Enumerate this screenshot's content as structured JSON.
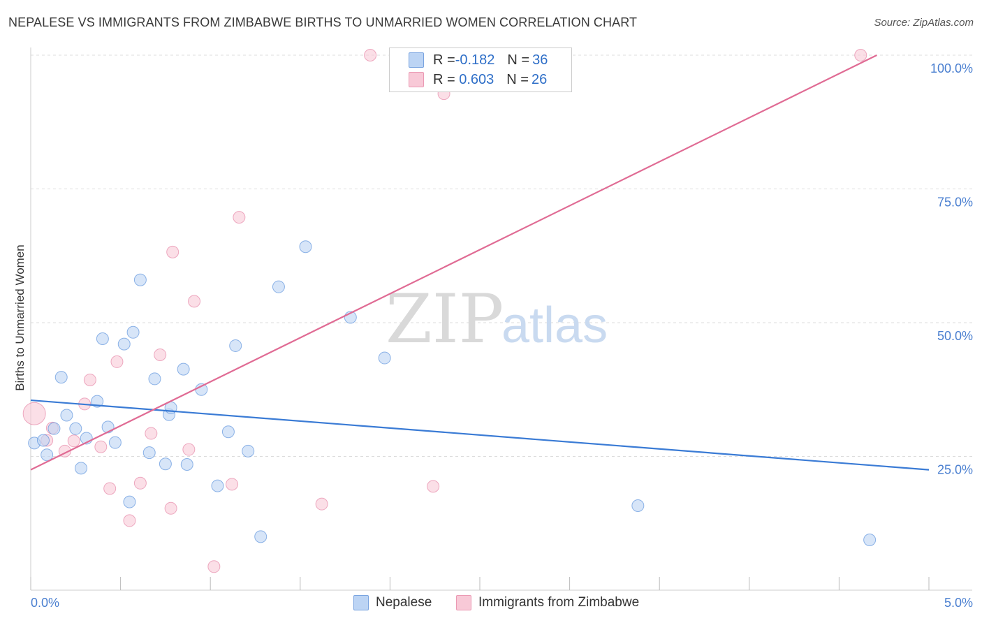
{
  "title": "NEPALESE VS IMMIGRANTS FROM ZIMBABWE BIRTHS TO UNMARRIED WOMEN CORRELATION CHART",
  "source": "Source: ZipAtlas.com",
  "watermark": {
    "zip": "ZIP",
    "atlas": "atlas"
  },
  "legend_stats": [
    {
      "r_label": "R = ",
      "r_value": "-0.182",
      "n_label": "N = ",
      "n_value": "36",
      "color": "#aecbf2"
    },
    {
      "r_label": "R = ",
      "r_value": " 0.603",
      "n_label": "N = ",
      "n_value": "26",
      "color": "#f7bfd0"
    }
  ],
  "bottom_legend": [
    "Nepalese",
    "Immigrants from Zimbabwe"
  ],
  "chart_data": {
    "type": "scatter",
    "title": "NEPALESE VS IMMIGRANTS FROM ZIMBABWE BIRTHS TO UNMARRIED WOMEN CORRELATION CHART",
    "xlabel": "",
    "ylabel": "Births to Unmarried Women",
    "xlim": [
      0,
      5
    ],
    "ylim": [
      0,
      100
    ],
    "x_tick_labels": [
      "0.0%",
      "5.0%"
    ],
    "y_ticks": [
      25,
      50,
      75,
      100
    ],
    "y_tick_labels": [
      "25.0%",
      "50.0%",
      "75.0%",
      "100.0%"
    ],
    "grid": true,
    "series": [
      {
        "name": "Nepalese",
        "color": "#3a7bd5",
        "fill": "#bcd4f4",
        "trend": {
          "x": [
            0,
            5
          ],
          "y": [
            35.5,
            22.5
          ]
        },
        "points": [
          {
            "x": 0.02,
            "y": 27.5
          },
          {
            "x": 0.07,
            "y": 28.0
          },
          {
            "x": 0.09,
            "y": 25.3
          },
          {
            "x": 0.13,
            "y": 30.2
          },
          {
            "x": 0.17,
            "y": 39.8
          },
          {
            "x": 0.2,
            "y": 32.7
          },
          {
            "x": 0.25,
            "y": 30.2
          },
          {
            "x": 0.28,
            "y": 22.8
          },
          {
            "x": 0.31,
            "y": 28.4
          },
          {
            "x": 0.37,
            "y": 35.3
          },
          {
            "x": 0.4,
            "y": 47.0
          },
          {
            "x": 0.43,
            "y": 30.5
          },
          {
            "x": 0.47,
            "y": 27.6
          },
          {
            "x": 0.52,
            "y": 46.0
          },
          {
            "x": 0.55,
            "y": 16.5
          },
          {
            "x": 0.57,
            "y": 48.2
          },
          {
            "x": 0.61,
            "y": 58.0
          },
          {
            "x": 0.66,
            "y": 25.7
          },
          {
            "x": 0.69,
            "y": 39.5
          },
          {
            "x": 0.75,
            "y": 23.6
          },
          {
            "x": 0.77,
            "y": 32.8
          },
          {
            "x": 0.78,
            "y": 34.1
          },
          {
            "x": 0.85,
            "y": 41.3
          },
          {
            "x": 0.87,
            "y": 23.5
          },
          {
            "x": 0.95,
            "y": 37.5
          },
          {
            "x": 1.04,
            "y": 19.5
          },
          {
            "x": 1.1,
            "y": 29.6
          },
          {
            "x": 1.14,
            "y": 45.7
          },
          {
            "x": 1.21,
            "y": 26.0
          },
          {
            "x": 1.28,
            "y": 10.0
          },
          {
            "x": 1.38,
            "y": 56.7
          },
          {
            "x": 1.53,
            "y": 64.2
          },
          {
            "x": 1.78,
            "y": 51.0
          },
          {
            "x": 1.97,
            "y": 43.4
          },
          {
            "x": 3.38,
            "y": 15.8
          },
          {
            "x": 4.67,
            "y": 9.4
          }
        ]
      },
      {
        "name": "Immigrants from Zimbabwe",
        "color": "#e06b94",
        "fill": "#f8c9d7",
        "trend": {
          "x": [
            0,
            4.71
          ],
          "y": [
            22.5,
            100
          ]
        },
        "points": [
          {
            "x": 0.02,
            "y": 33.0,
            "big": true
          },
          {
            "x": 0.09,
            "y": 28.0
          },
          {
            "x": 0.12,
            "y": 30.3
          },
          {
            "x": 0.19,
            "y": 26.0
          },
          {
            "x": 0.24,
            "y": 27.9
          },
          {
            "x": 0.3,
            "y": 34.8
          },
          {
            "x": 0.33,
            "y": 39.3
          },
          {
            "x": 0.39,
            "y": 26.8
          },
          {
            "x": 0.44,
            "y": 19.0
          },
          {
            "x": 0.48,
            "y": 42.7
          },
          {
            "x": 0.55,
            "y": 13.0
          },
          {
            "x": 0.61,
            "y": 20.0
          },
          {
            "x": 0.67,
            "y": 29.3
          },
          {
            "x": 0.72,
            "y": 44.0
          },
          {
            "x": 0.78,
            "y": 15.3
          },
          {
            "x": 0.79,
            "y": 63.2
          },
          {
            "x": 0.88,
            "y": 26.3
          },
          {
            "x": 0.91,
            "y": 54.0
          },
          {
            "x": 1.02,
            "y": 4.4
          },
          {
            "x": 1.12,
            "y": 19.8
          },
          {
            "x": 1.16,
            "y": 69.7
          },
          {
            "x": 1.62,
            "y": 16.1
          },
          {
            "x": 1.89,
            "y": 100.0
          },
          {
            "x": 2.24,
            "y": 19.4
          },
          {
            "x": 2.3,
            "y": 92.8
          },
          {
            "x": 4.62,
            "y": 100.0
          }
        ]
      }
    ]
  }
}
